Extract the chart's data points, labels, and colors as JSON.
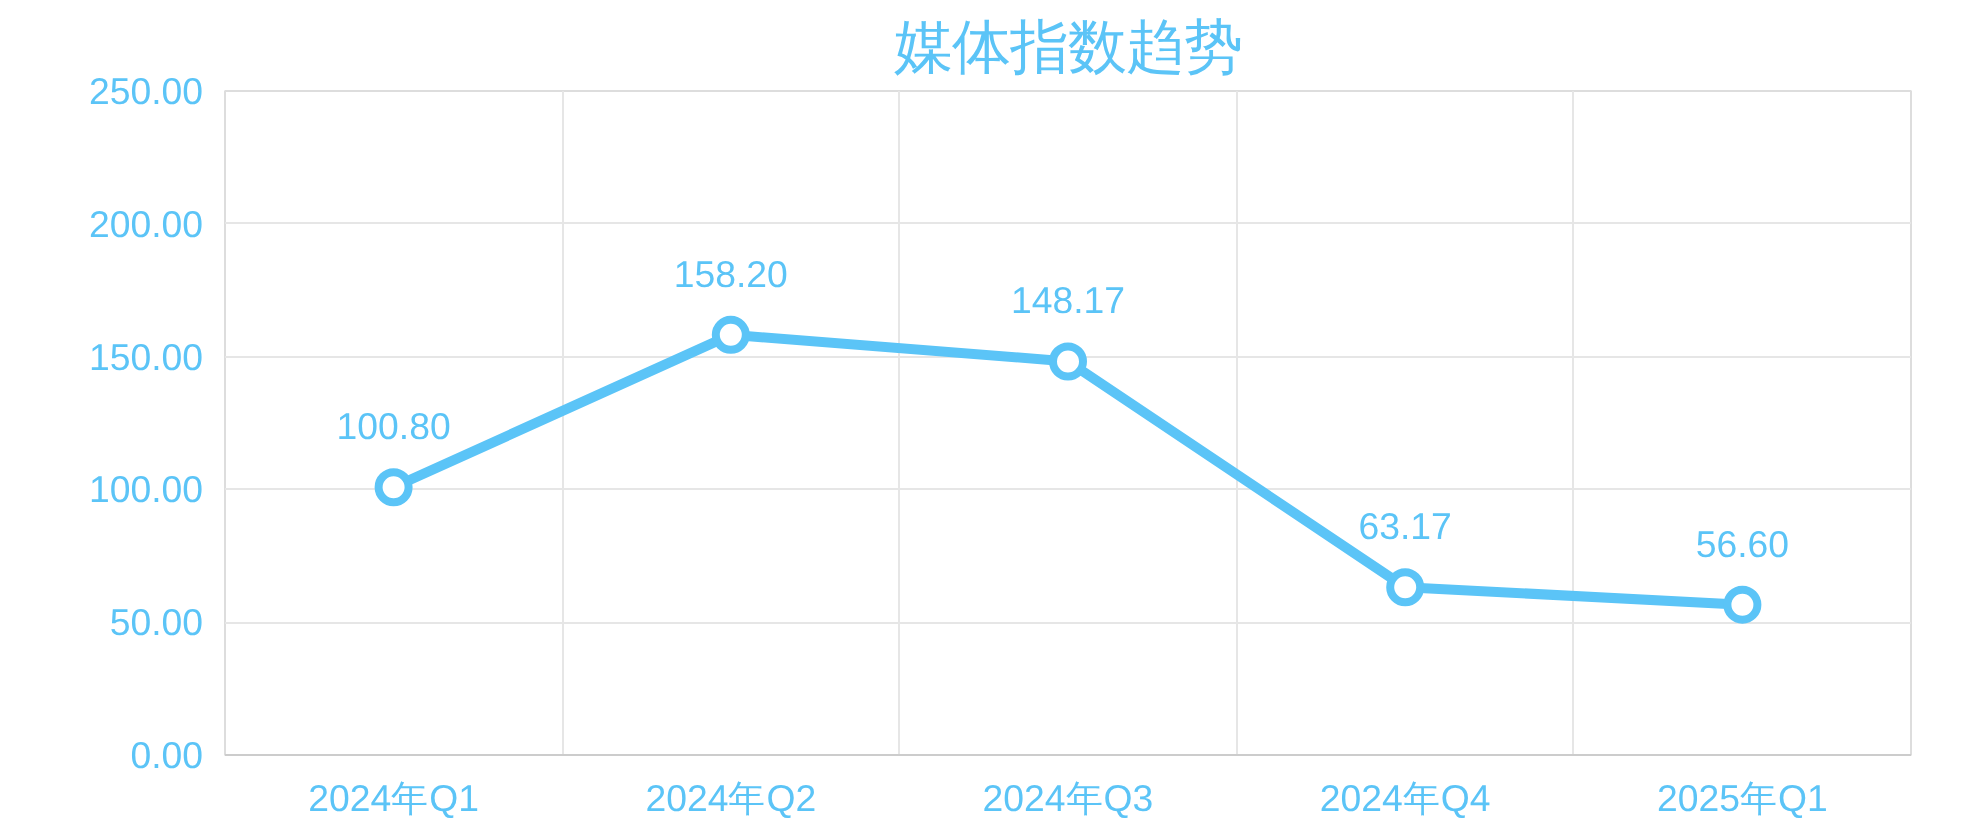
{
  "chart_data": {
    "type": "line",
    "title": "媒体指数趋势",
    "categories": [
      "2024年Q1",
      "2024年Q2",
      "2024年Q3",
      "2024年Q4",
      "2025年Q1"
    ],
    "values": [
      100.8,
      158.2,
      148.17,
      63.17,
      56.6
    ],
    "value_labels": [
      "100.80",
      "158.20",
      "148.17",
      "63.17",
      "56.60"
    ],
    "color": "#5bc4f7",
    "ylim": [
      0,
      250
    ],
    "yticks": [
      {
        "value": 0,
        "label": "0.00"
      },
      {
        "value": 50,
        "label": "50.00"
      },
      {
        "value": 100,
        "label": "100.00"
      },
      {
        "value": 150,
        "label": "150.00"
      },
      {
        "value": 200,
        "label": "200.00"
      },
      {
        "value": 250,
        "label": "250.00"
      }
    ],
    "grid": true,
    "marker": "circle",
    "line_style": "solid"
  }
}
